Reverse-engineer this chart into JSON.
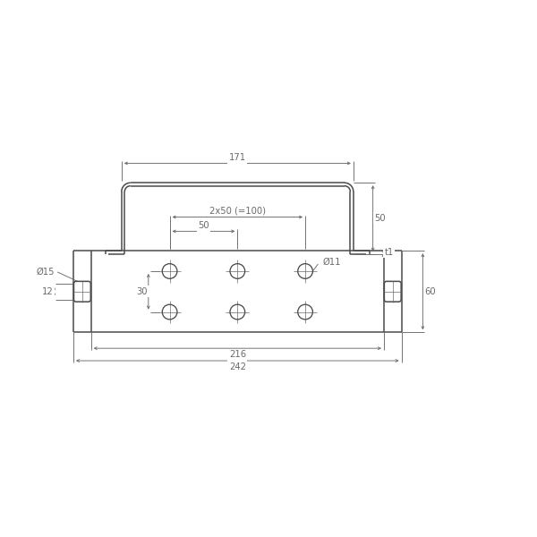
{
  "background_color": "#ffffff",
  "line_color": "#4a4a4a",
  "dim_color": "#6a6a6a",
  "fig_width": 6.0,
  "fig_height": 6.0,
  "lw_main": 1.1,
  "lw_dim": 0.65,
  "annotations": {
    "dim_171": "171",
    "dim_50": "50",
    "dim_t1": "t1",
    "dim_2x50": "2x50 (=100)",
    "dim_50b": "50",
    "dim_phi15": "Ø15",
    "dim_12": "12",
    "dim_30": "30",
    "dim_phi11": "Ø11",
    "dim_60": "60",
    "dim_216": "216",
    "dim_242": "242"
  }
}
